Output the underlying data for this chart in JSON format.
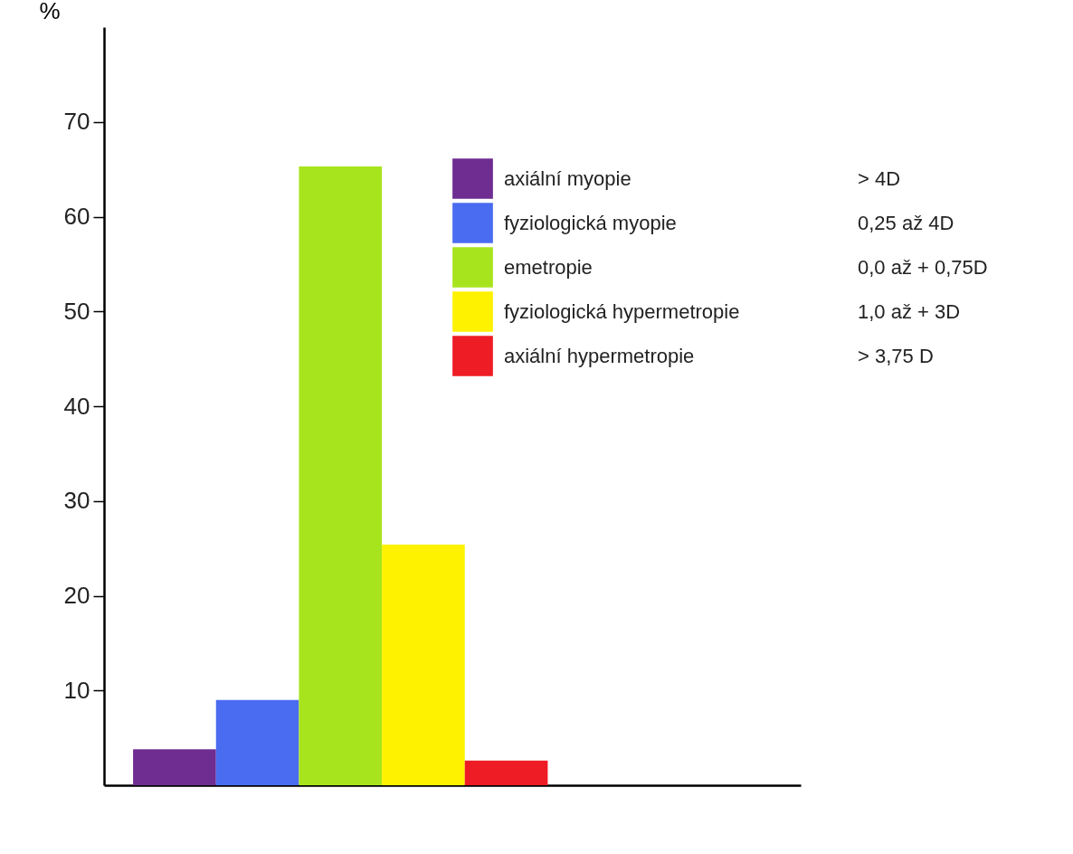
{
  "chart_data": {
    "type": "bar",
    "ylabel": "%",
    "categories": [
      null,
      null,
      null,
      null,
      null
    ],
    "series": [
      {
        "name": "axiální myopie",
        "color": "#6f2c91",
        "values": [
          3.8,
          null,
          null,
          null,
          null
        ]
      },
      {
        "name": "fyziologická myopie",
        "color": "#4a6cf0",
        "values": [
          null,
          9.0,
          null,
          null,
          null
        ]
      },
      {
        "name": "emetropie",
        "color": "#a8e41e",
        "values": [
          null,
          null,
          65.3,
          null,
          null
        ]
      },
      {
        "name": "fyziologická hypermetropie",
        "color": "#fff200",
        "values": [
          null,
          null,
          null,
          25.4,
          null
        ]
      },
      {
        "name": "axiální hypermetropie",
        "color": "#ee1c25",
        "values": [
          null,
          null,
          null,
          null,
          2.6
        ]
      }
    ],
    "stacked": true,
    "ylim": [
      0,
      80
    ],
    "yticks": [
      10,
      20,
      30,
      40,
      50,
      60,
      70
    ],
    "grid": false,
    "legend": "top right",
    "annotations": [
      "> 4D",
      "0,25 až 4D",
      "0,0 až + 0,75D",
      "1,0 až + 3D",
      "> 3,75 D"
    ]
  }
}
